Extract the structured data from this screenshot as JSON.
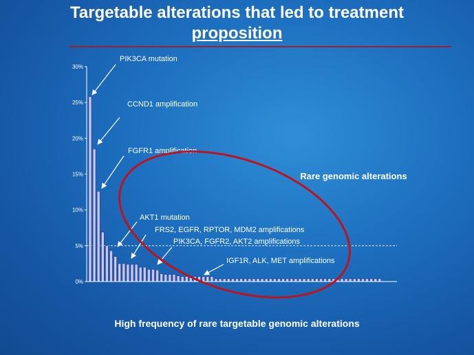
{
  "slide": {
    "title_line1": "Targetable alterations that led to treatment",
    "title_line2": "proposition",
    "footer": "High frequency of rare targetable genomic alterations",
    "rule_color": "#a02027"
  },
  "chart_data": {
    "type": "bar",
    "ylim": [
      0,
      30
    ],
    "yticks": [
      {
        "value": 0,
        "label": "0%"
      },
      {
        "value": 5,
        "label": "5%"
      },
      {
        "value": 10,
        "label": "10%"
      },
      {
        "value": 15,
        "label": "15%"
      },
      {
        "value": 20,
        "label": "20%"
      },
      {
        "value": 25,
        "label": "25%"
      },
      {
        "value": 30,
        "label": "30%"
      }
    ],
    "reference_line": 5,
    "values": [
      25.8,
      18.5,
      12.6,
      6.9,
      5.0,
      4.3,
      3.5,
      2.5,
      2.5,
      2.4,
      2.4,
      2.4,
      2.0,
      2.0,
      1.7,
      1.7,
      1.6,
      1.1,
      1.0,
      1.0,
      1.0,
      0.8,
      0.7,
      0.7,
      0.7,
      0.7,
      0.7,
      0.7,
      0.7,
      0.7,
      0.4,
      0.4,
      0.4,
      0.4,
      0.4,
      0.4,
      0.4,
      0.4,
      0.4,
      0.4,
      0.4,
      0.4,
      0.4,
      0.4,
      0.4,
      0.4,
      0.4,
      0.4,
      0.4,
      0.4,
      0.4,
      0.4,
      0.4,
      0.4,
      0.4,
      0.4,
      0.4,
      0.4,
      0.4,
      0.4,
      0.4,
      0.4,
      0.4,
      0.4,
      0.4,
      0.4,
      0.4,
      0.4,
      0.4,
      0.4
    ],
    "bar_color": "#c4c8ea",
    "bar_stroke": "#2a2f8c",
    "highlight": {
      "label": "Rare genomic alterations",
      "color": "#c0121c"
    },
    "annotations": [
      {
        "text": "PIK3CA mutation",
        "bar_index": 0
      },
      {
        "text": "CCND1 amplification",
        "bar_index": 1
      },
      {
        "text": "FGFR1 amplification",
        "bar_index": 2
      },
      {
        "text": "AKT1 mutation",
        "bar_index": 6
      },
      {
        "text": "FRS2, EGFR, RPTOR, MDM2 amplifications",
        "bar_index": 10
      },
      {
        "text": "PIK3CA, FGFR2, AKT2  amplifications",
        "bar_index": 15
      },
      {
        "text": "IGF1R, ALK, MET amplifications",
        "bar_index": 27
      }
    ]
  }
}
